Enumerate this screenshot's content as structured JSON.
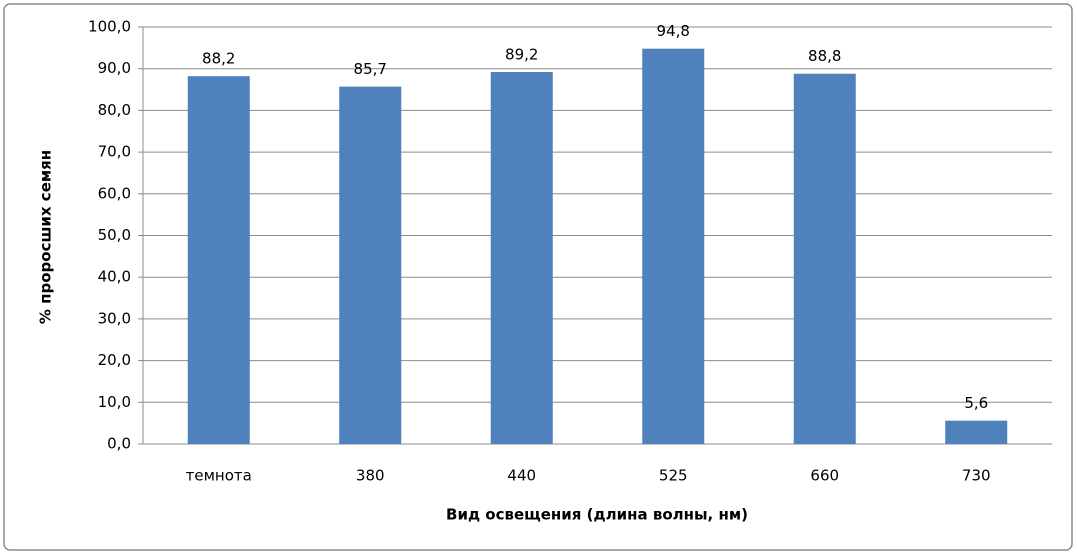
{
  "chart_data": {
    "type": "bar",
    "x_label": "Вид освещения (длина волны, нм)",
    "y_label": "% проросших семян",
    "categories": [
      "темнота",
      "380",
      "440",
      "525",
      "660",
      "730"
    ],
    "values": [
      88.2,
      85.7,
      89.2,
      94.8,
      88.8,
      5.6
    ],
    "value_labels": [
      "88,2",
      "85,7",
      "89,2",
      "94,8",
      "88,8",
      "5,6"
    ],
    "color": "#4f81bd",
    "ylim": [
      0,
      100
    ],
    "yticks": [
      {
        "value": 0,
        "label": "0,0"
      },
      {
        "value": 10,
        "label": "10,0"
      },
      {
        "value": 20,
        "label": "20,0"
      },
      {
        "value": 30,
        "label": "30,0"
      },
      {
        "value": 40,
        "label": "40,0"
      },
      {
        "value": 50,
        "label": "50,0"
      },
      {
        "value": 60,
        "label": "60,0"
      },
      {
        "value": 70,
        "label": "70,0"
      },
      {
        "value": 80,
        "label": "80,0"
      },
      {
        "value": 90,
        "label": "90,0"
      },
      {
        "value": 100,
        "label": "100,0"
      }
    ],
    "grid": true
  }
}
